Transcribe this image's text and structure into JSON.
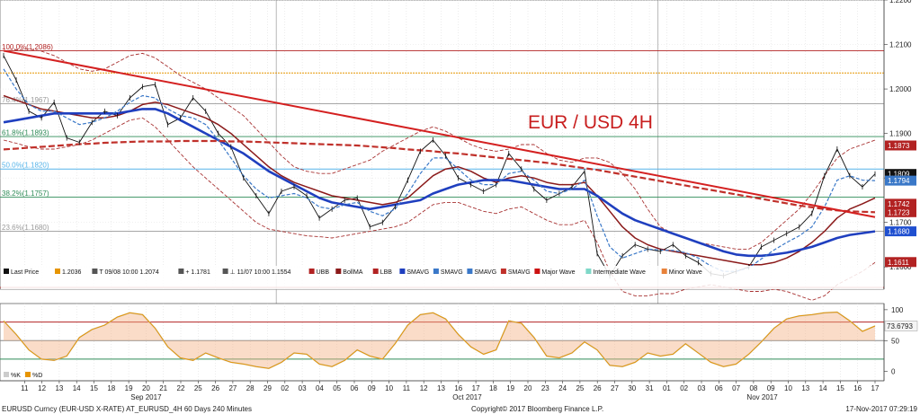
{
  "chart_data": [
    {
      "type": "line",
      "title": "EUR / USD 4H",
      "x_date_range": [
        "2017-09-08",
        "2017-11-17"
      ],
      "ylim": [
        1.155,
        1.22
      ],
      "y_ticks": [
        "1.2200",
        "1.2100",
        "1.2000",
        "1.1900",
        "1.1800",
        "1.1700",
        "1.1600"
      ],
      "fib_levels": [
        {
          "label": "100.0%(1.2086)",
          "value": 1.2086,
          "color": "#b22222"
        },
        {
          "label": "76.4%(1.1967)",
          "value": 1.1967,
          "color": "#999999"
        },
        {
          "label": "61.8%(1.1893)",
          "value": 1.1893,
          "color": "#2e8b57"
        },
        {
          "label": "50.0%(1.1820)",
          "value": 1.182,
          "color": "#56b4e9"
        },
        {
          "label": "38.2%(1.1757)",
          "value": 1.1757,
          "color": "#2e8b57"
        },
        {
          "label": "23.6%(1.1680)",
          "value": 1.168,
          "color": "#999999"
        }
      ],
      "extra_levels": [
        {
          "value": 1.2036,
          "color": "#e69500"
        },
        {
          "value": 1.1554,
          "color": "#b22222"
        }
      ],
      "price_badges": [
        {
          "label": "1.1873",
          "value": 1.1873,
          "color": "#b22222"
        },
        {
          "label": "1.1809",
          "value": 1.1809,
          "color": "#111111"
        },
        {
          "label": "1.1794",
          "value": 1.1794,
          "color": "#3a78c8"
        },
        {
          "label": "1.1742",
          "value": 1.1742,
          "color": "#b22222"
        },
        {
          "label": "1.1723",
          "value": 1.1723,
          "color": "#b22222"
        },
        {
          "label": "1.1680",
          "value": 1.168,
          "color": "#1f4fd0"
        },
        {
          "label": "1.1611",
          "value": 1.1611,
          "color": "#b22222"
        }
      ],
      "series": [
        {
          "name": "Last Price",
          "color": "#111111",
          "values": [
            1.2075,
            1.202,
            1.195,
            1.1935,
            1.197,
            1.189,
            1.188,
            1.1925,
            1.195,
            1.194,
            1.198,
            1.2005,
            1.201,
            1.192,
            1.1935,
            1.198,
            1.195,
            1.19,
            1.187,
            1.18,
            1.176,
            1.172,
            1.177,
            1.178,
            1.176,
            1.171,
            1.173,
            1.175,
            1.1755,
            1.169,
            1.17,
            1.1735,
            1.1795,
            1.186,
            1.1885,
            1.185,
            1.18,
            1.1785,
            1.177,
            1.1785,
            1.1855,
            1.182,
            1.1775,
            1.175,
            1.1765,
            1.178,
            1.1815,
            1.163,
            1.158,
            1.1625,
            1.165,
            1.164,
            1.1635,
            1.165,
            1.1625,
            1.161,
            1.1585,
            1.158,
            1.159,
            1.16,
            1.1645,
            1.166,
            1.1675,
            1.169,
            1.172,
            1.1805,
            1.1865,
            1.1805,
            1.178,
            1.1809
          ]
        },
        {
          "name": "BollMA",
          "color": "#8b1a1a",
          "values": [
            1.1985,
            1.1975,
            1.1965,
            1.1955,
            1.195,
            1.1945,
            1.194,
            1.1935,
            1.1935,
            1.194,
            1.195,
            1.1965,
            1.197,
            1.1965,
            1.1955,
            1.1945,
            1.1935,
            1.192,
            1.19,
            1.1875,
            1.185,
            1.1825,
            1.1805,
            1.179,
            1.178,
            1.177,
            1.176,
            1.1755,
            1.175,
            1.1745,
            1.174,
            1.1745,
            1.1755,
            1.178,
            1.1805,
            1.182,
            1.1825,
            1.1815,
            1.18,
            1.179,
            1.18,
            1.1805,
            1.18,
            1.179,
            1.1785,
            1.1785,
            1.179,
            1.176,
            1.1725,
            1.169,
            1.1665,
            1.165,
            1.164,
            1.1635,
            1.163,
            1.1625,
            1.162,
            1.1615,
            1.161,
            1.1605,
            1.1605,
            1.161,
            1.162,
            1.1635,
            1.1655,
            1.168,
            1.171,
            1.173,
            1.1742,
            1.1755
          ]
        },
        {
          "name": "SMAVG",
          "color": "#1f3fbf",
          "values": [
            1.1925,
            1.193,
            1.1935,
            1.194,
            1.1945,
            1.1945,
            1.1945,
            1.1945,
            1.1945,
            1.1945,
            1.195,
            1.1955,
            1.1955,
            1.1945,
            1.193,
            1.1915,
            1.19,
            1.1885,
            1.187,
            1.1855,
            1.1835,
            1.1815,
            1.18,
            1.1785,
            1.177,
            1.1755,
            1.1745,
            1.174,
            1.1735,
            1.173,
            1.1735,
            1.174,
            1.1745,
            1.175,
            1.1765,
            1.1775,
            1.1785,
            1.179,
            1.1795,
            1.1795,
            1.1795,
            1.179,
            1.1785,
            1.178,
            1.1775,
            1.1775,
            1.1775,
            1.176,
            1.174,
            1.172,
            1.1705,
            1.1695,
            1.1685,
            1.1675,
            1.1665,
            1.1655,
            1.1645,
            1.1635,
            1.1628,
            1.1625,
            1.1625,
            1.1628,
            1.1632,
            1.1638,
            1.1645,
            1.1655,
            1.1665,
            1.1672,
            1.1676,
            1.168
          ]
        },
        {
          "name": "SMAVG",
          "color": "#3a78c8",
          "dashed": true,
          "values": [
            1.2045,
            1.2,
            1.1965,
            1.195,
            1.195,
            1.1935,
            1.192,
            1.1925,
            1.1935,
            1.195,
            1.197,
            1.1985,
            1.198,
            1.1955,
            1.194,
            1.1935,
            1.192,
            1.1885,
            1.1845,
            1.1805,
            1.1775,
            1.1755,
            1.176,
            1.1765,
            1.1755,
            1.1735,
            1.173,
            1.174,
            1.1745,
            1.1725,
            1.1715,
            1.173,
            1.1765,
            1.181,
            1.1845,
            1.1845,
            1.182,
            1.1795,
            1.1785,
            1.1785,
            1.181,
            1.1815,
            1.1795,
            1.177,
            1.1765,
            1.1775,
            1.1795,
            1.1715,
            1.1645,
            1.162,
            1.163,
            1.164,
            1.1638,
            1.1637,
            1.1632,
            1.162,
            1.1602,
            1.159,
            1.159,
            1.1598,
            1.1618,
            1.1638,
            1.1655,
            1.167,
            1.169,
            1.1735,
            1.1795,
            1.1805,
            1.1795,
            1.1794
          ]
        },
        {
          "name": "SMAVG",
          "color": "#c0302a",
          "dashed": true,
          "values": [
            1.1864,
            1.1866,
            1.1868,
            1.187,
            1.1872,
            1.1874,
            1.1876,
            1.1877,
            1.1879,
            1.188,
            1.1881,
            1.1882,
            1.1882,
            1.1882,
            1.1883,
            1.1883,
            1.1883,
            1.1883,
            1.1882,
            1.1882,
            1.1881,
            1.188,
            1.1879,
            1.1878,
            1.1877,
            1.1876,
            1.1875,
            1.1874,
            1.1873,
            1.1871,
            1.1869,
            1.1867,
            1.1864,
            1.1862,
            1.186,
            1.1857,
            1.1855,
            1.1852,
            1.1849,
            1.1846,
            1.1843,
            1.184,
            1.1837,
            1.1834,
            1.183,
            1.1826,
            1.1822,
            1.1818,
            1.1813,
            1.1808,
            1.1803,
            1.1798,
            1.1793,
            1.1788,
            1.1783,
            1.1778,
            1.1773,
            1.1768,
            1.1763,
            1.1758,
            1.1753,
            1.1748,
            1.1743,
            1.1738,
            1.1734,
            1.173,
            1.1727,
            1.1725,
            1.1724,
            1.1723
          ]
        }
      ],
      "bands": {
        "upper": [
          1.2085,
          1.2088,
          1.209,
          1.2085,
          1.2075,
          1.206,
          1.2045,
          1.204,
          1.2045,
          1.206,
          1.2075,
          1.208,
          1.207,
          1.205,
          1.203,
          1.2015,
          1.2,
          1.198,
          1.196,
          1.194,
          1.191,
          1.188,
          1.185,
          1.1825,
          1.1815,
          1.181,
          1.181,
          1.182,
          1.183,
          1.184,
          1.186,
          1.1875,
          1.189,
          1.1905,
          1.1915,
          1.1905,
          1.189,
          1.1875,
          1.1865,
          1.186,
          1.1865,
          1.1875,
          1.1875,
          1.1855,
          1.184,
          1.1835,
          1.1845,
          1.1845,
          1.1835,
          1.181,
          1.1775,
          1.173,
          1.169,
          1.1675,
          1.1665,
          1.1655,
          1.165,
          1.1645,
          1.164,
          1.164,
          1.1655,
          1.168,
          1.1705,
          1.173,
          1.1765,
          1.1805,
          1.1845,
          1.1865,
          1.1875,
          1.1885
        ],
        "lower": [
          1.1885,
          1.1878,
          1.187,
          1.1865,
          1.1865,
          1.187,
          1.1875,
          1.1885,
          1.19,
          1.1915,
          1.193,
          1.1935,
          1.1915,
          1.1885,
          1.1855,
          1.1825,
          1.18,
          1.1775,
          1.175,
          1.1725,
          1.17,
          1.1685,
          1.168,
          1.1675,
          1.167,
          1.1668,
          1.1665,
          1.167,
          1.1675,
          1.168,
          1.1685,
          1.169,
          1.17,
          1.172,
          1.174,
          1.1745,
          1.1745,
          1.1735,
          1.1725,
          1.172,
          1.173,
          1.1735,
          1.172,
          1.1705,
          1.1695,
          1.1695,
          1.1705,
          1.1655,
          1.159,
          1.1545,
          1.1535,
          1.1535,
          1.154,
          1.154,
          1.155,
          1.1555,
          1.156,
          1.1555,
          1.155,
          1.1545,
          1.1545,
          1.155,
          1.1545,
          1.1535,
          1.1525,
          1.1535,
          1.156,
          1.1575,
          1.159,
          1.161
        ]
      },
      "trendline": {
        "from": [
          0,
          1.2086
        ],
        "to": [
          69,
          1.1712
        ],
        "color": "#d42020"
      },
      "legend": [
        {
          "label": "Last Price",
          "color": "#111111"
        },
        {
          "label": "1.2036",
          "color": "#e69500"
        },
        {
          "label": "T 09/08 10:00 1.2074",
          "color": "#555555"
        },
        {
          "label": "+ 1.1781",
          "color": "#555555"
        },
        {
          "label": "⊥ 11/07 10:00 1.1554",
          "color": "#555555"
        },
        {
          "label": "UBB",
          "color": "#b22222"
        },
        {
          "label": "BollMA",
          "color": "#8b1a1a"
        },
        {
          "label": "LBB",
          "color": "#b22222"
        },
        {
          "label": "SMAVG",
          "color": "#1f3fbf"
        },
        {
          "label": "SMAVG",
          "color": "#3a78c8"
        },
        {
          "label": "SMAVG",
          "color": "#3a78c8"
        },
        {
          "label": "SMAVG",
          "color": "#c0302a"
        },
        {
          "label": "Major Wave",
          "color": "#cc1111"
        },
        {
          "label": "Intermediate Wave",
          "color": "#7fd8c8"
        },
        {
          "label": "Minor Wave",
          "color": "#e8823a"
        }
      ]
    },
    {
      "type": "area",
      "ylim": [
        -15,
        110
      ],
      "y_ticks": [
        "100",
        "50",
        "0"
      ],
      "levels": [
        {
          "value": 80,
          "color": "#b22222"
        },
        {
          "value": 50,
          "color": "#888888"
        },
        {
          "value": 20,
          "color": "#2e8b57"
        }
      ],
      "value_badge": {
        "label": "73.6793",
        "value": 73.6793
      },
      "legend": [
        {
          "label": "%K",
          "color": "#cccccc"
        },
        {
          "label": "%D",
          "color": "#e69500"
        }
      ],
      "series": [
        {
          "name": "%K",
          "color": "#e69500",
          "values": [
            82,
            60,
            35,
            20,
            18,
            25,
            55,
            68,
            75,
            88,
            95,
            92,
            70,
            40,
            22,
            18,
            30,
            22,
            15,
            12,
            8,
            5,
            15,
            30,
            28,
            12,
            8,
            18,
            35,
            25,
            20,
            45,
            75,
            92,
            95,
            85,
            60,
            40,
            28,
            35,
            82,
            78,
            55,
            25,
            22,
            30,
            48,
            35,
            10,
            8,
            15,
            30,
            25,
            28,
            45,
            30,
            15,
            8,
            12,
            28,
            48,
            70,
            85,
            90,
            92,
            95,
            96,
            82,
            65,
            73.6793
          ]
        }
      ]
    }
  ],
  "x_axis": {
    "ticks": [
      {
        "i": 1,
        "label": "11"
      },
      {
        "i": 2,
        "label": "12"
      },
      {
        "i": 3,
        "label": "13"
      },
      {
        "i": 4,
        "label": "14"
      },
      {
        "i": 5,
        "label": "15"
      },
      {
        "i": 6,
        "label": "18"
      },
      {
        "i": 7,
        "label": "19"
      },
      {
        "i": 8,
        "label": "20"
      },
      {
        "i": 9,
        "label": "21"
      },
      {
        "i": 10,
        "label": "22"
      },
      {
        "i": 11,
        "label": "25"
      },
      {
        "i": 12,
        "label": "26"
      },
      {
        "i": 13,
        "label": "27"
      },
      {
        "i": 14,
        "label": "28"
      },
      {
        "i": 15,
        "label": "29"
      },
      {
        "i": 16,
        "label": "02"
      },
      {
        "i": 17,
        "label": "03"
      },
      {
        "i": 18,
        "label": "04"
      },
      {
        "i": 19,
        "label": "05"
      },
      {
        "i": 20,
        "label": "06"
      },
      {
        "i": 21,
        "label": "09"
      },
      {
        "i": 22,
        "label": "10"
      },
      {
        "i": 23,
        "label": "11"
      },
      {
        "i": 24,
        "label": "12"
      },
      {
        "i": 25,
        "label": "13"
      },
      {
        "i": 26,
        "label": "16"
      },
      {
        "i": 27,
        "label": "17"
      },
      {
        "i": 28,
        "label": "18"
      },
      {
        "i": 29,
        "label": "19"
      },
      {
        "i": 30,
        "label": "20"
      },
      {
        "i": 31,
        "label": "23"
      },
      {
        "i": 32,
        "label": "24"
      },
      {
        "i": 33,
        "label": "25"
      },
      {
        "i": 34,
        "label": "26"
      },
      {
        "i": 35,
        "label": "27"
      },
      {
        "i": 36,
        "label": "30"
      },
      {
        "i": 37,
        "label": "31"
      },
      {
        "i": 38,
        "label": "01"
      },
      {
        "i": 39,
        "label": "02"
      },
      {
        "i": 40,
        "label": "03"
      },
      {
        "i": 41,
        "label": "06"
      },
      {
        "i": 42,
        "label": "07"
      },
      {
        "i": 43,
        "label": "08"
      },
      {
        "i": 44,
        "label": "09"
      },
      {
        "i": 45,
        "label": "10"
      },
      {
        "i": 46,
        "label": "13"
      },
      {
        "i": 47,
        "label": "14"
      },
      {
        "i": 48,
        "label": "15"
      },
      {
        "i": 49,
        "label": "16"
      },
      {
        "i": 50,
        "label": "17"
      }
    ],
    "months": [
      {
        "i": 8,
        "label": "Sep 2017"
      },
      {
        "i": 26.5,
        "label": "Oct 2017"
      },
      {
        "i": 43.5,
        "label": "Nov 2017"
      }
    ],
    "month_breaks": [
      15.5,
      37.5
    ]
  },
  "footer": {
    "left": "EURUSD Curncy (EUR-USD X-RATE) AT_EURUSD_4H 60 Days 240 Minutes",
    "center": "Copyright© 2017 Bloomberg Finance L.P.",
    "right": "17-Nov-2017 07:29:19"
  }
}
